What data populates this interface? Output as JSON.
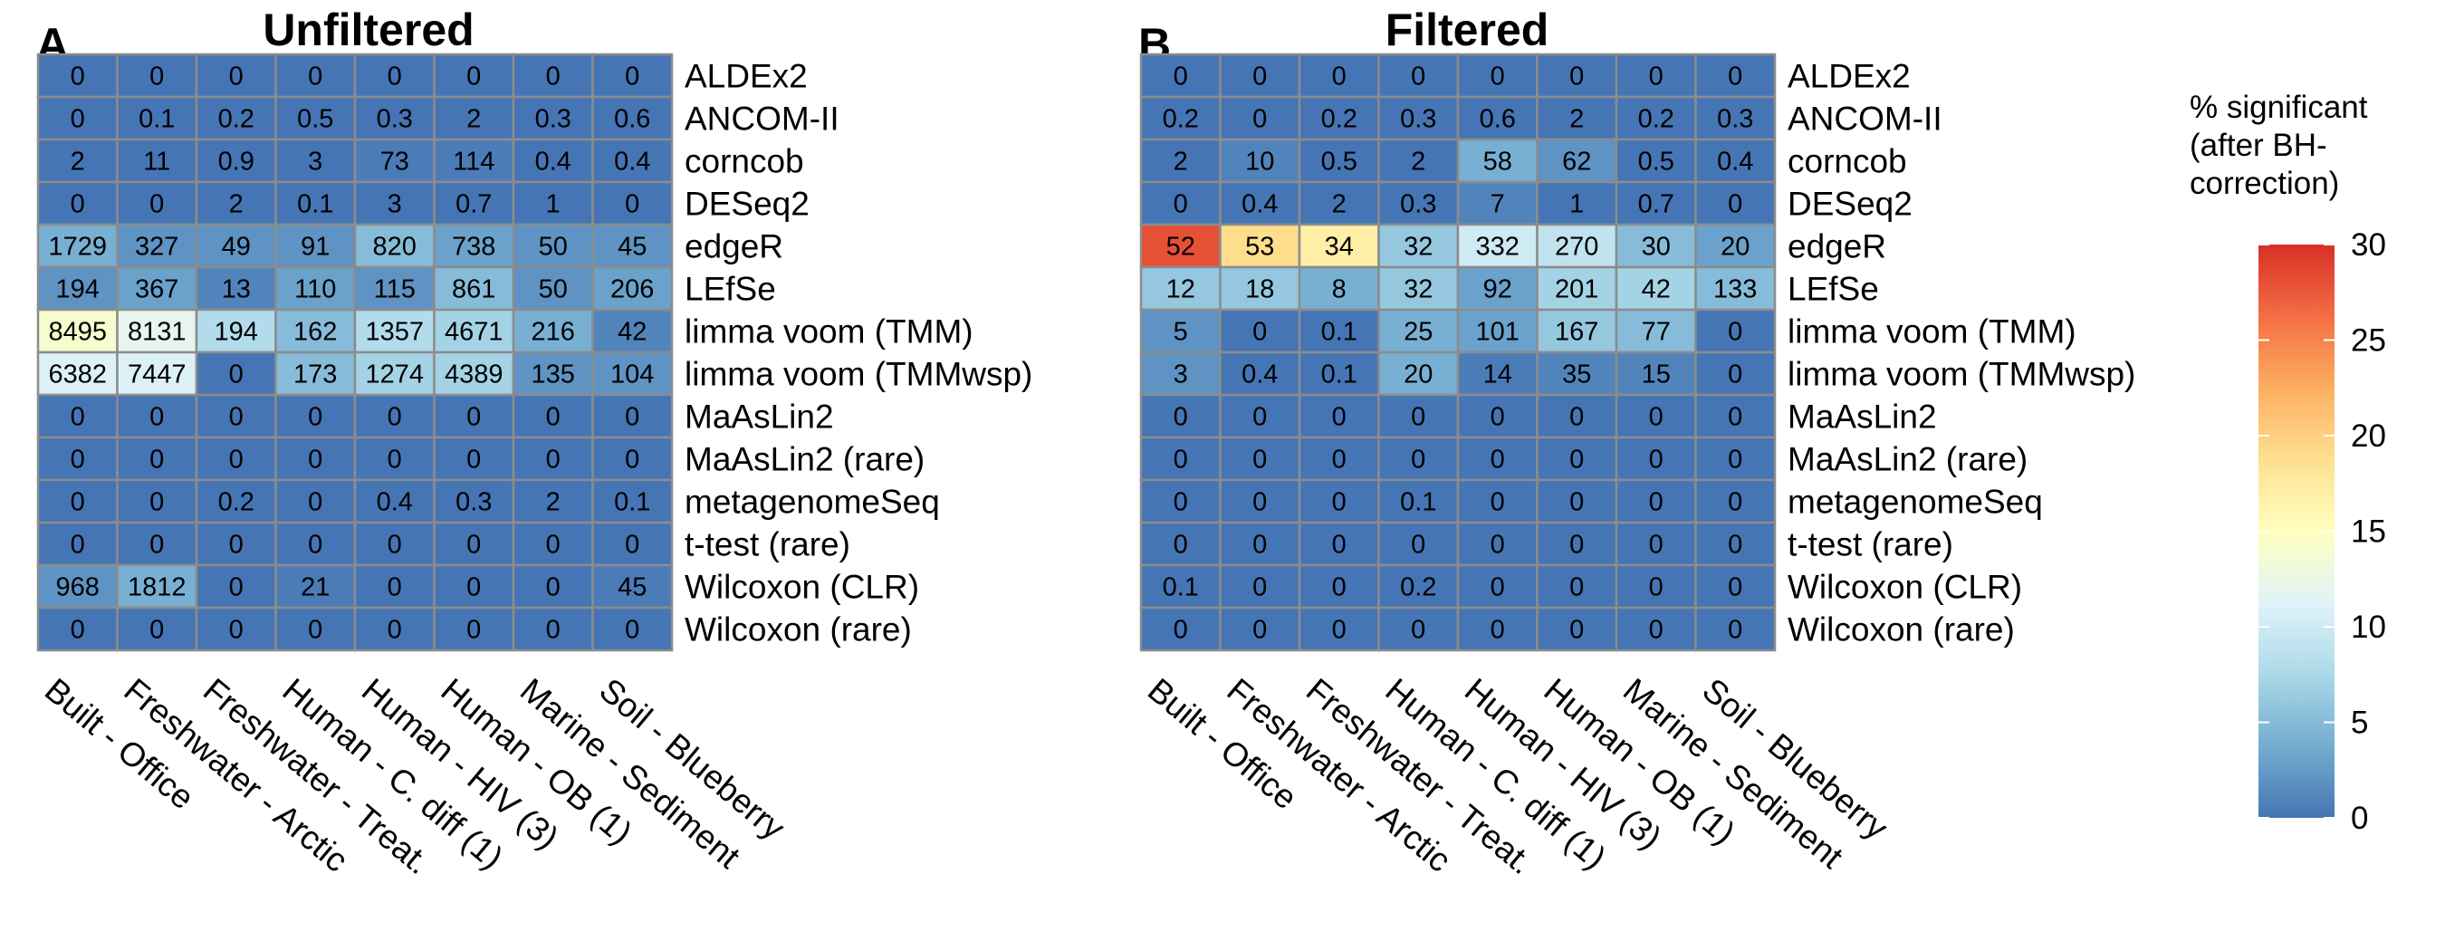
{
  "legend": {
    "title_lines": [
      "% significant",
      "(after BH-",
      "correction)"
    ],
    "min": 0,
    "max": 30,
    "ticks": [
      0,
      5,
      10,
      15,
      20,
      25,
      30
    ]
  },
  "colors": {
    "scale": [
      "#4575b4",
      "#74add1",
      "#abd9e9",
      "#e0f3f8",
      "#ffffbf",
      "#fee090",
      "#fdae61",
      "#f46d43",
      "#d73027"
    ],
    "grid": "#8c8c8c"
  },
  "chart_data": [
    {
      "type": "heatmap",
      "panel": "A",
      "title": "Unfiltered",
      "columns": [
        "Built - Office",
        "Freshwater - Arctic",
        "Freshwater - Treat.",
        "Human - C. diff (1)",
        "Human - HIV (3)",
        "Human - OB (1)",
        "Marine - Sediment",
        "Soil - Blueberry"
      ],
      "rows": [
        "ALDEx2",
        "ANCOM-II",
        "corncob",
        "DESeq2",
        "edgeR",
        "LEfSe",
        "limma voom (TMM)",
        "limma voom (TMMwsp)",
        "MaAsLin2",
        "MaAsLin2 (rare)",
        "metagenomeSeq",
        "t-test (rare)",
        "Wilcoxon (CLR)",
        "Wilcoxon (rare)"
      ],
      "labels": [
        [
          "0",
          "0",
          "0",
          "0",
          "0",
          "0",
          "0",
          "0"
        ],
        [
          "0",
          "0.1",
          "0.2",
          "0.5",
          "0.3",
          "2",
          "0.3",
          "0.6"
        ],
        [
          "2",
          "11",
          "0.9",
          "3",
          "73",
          "114",
          "0.4",
          "0.4"
        ],
        [
          "0",
          "0",
          "2",
          "0.1",
          "3",
          "0.7",
          "1",
          "0"
        ],
        [
          "1729",
          "327",
          "49",
          "91",
          "820",
          "738",
          "50",
          "45"
        ],
        [
          "194",
          "367",
          "13",
          "110",
          "115",
          "861",
          "50",
          "206"
        ],
        [
          "8495",
          "8131",
          "194",
          "162",
          "1357",
          "4671",
          "216",
          "42"
        ],
        [
          "6382",
          "7447",
          "0",
          "173",
          "1274",
          "4389",
          "135",
          "104"
        ],
        [
          "0",
          "0",
          "0",
          "0",
          "0",
          "0",
          "0",
          "0"
        ],
        [
          "0",
          "0",
          "0",
          "0",
          "0",
          "0",
          "0",
          "0"
        ],
        [
          "0",
          "0",
          "0.2",
          "0",
          "0.4",
          "0.3",
          "2",
          "0.1"
        ],
        [
          "0",
          "0",
          "0",
          "0",
          "0",
          "0",
          "0",
          "0"
        ],
        [
          "968",
          "1812",
          "0",
          "21",
          "0",
          "0",
          "0",
          "45"
        ],
        [
          "0",
          "0",
          "0",
          "0",
          "0",
          "0",
          "0",
          "0"
        ]
      ],
      "pct": [
        [
          0,
          0,
          0,
          0,
          0,
          0,
          0,
          0
        ],
        [
          0,
          0,
          0,
          0,
          0,
          0,
          0,
          0
        ],
        [
          0,
          0,
          0,
          0,
          0.5,
          0.5,
          0,
          0
        ],
        [
          0,
          0,
          0,
          0,
          0,
          0,
          0,
          0
        ],
        [
          4,
          2,
          2,
          2,
          5,
          3,
          2,
          2
        ],
        [
          2,
          3,
          1,
          3,
          2,
          5,
          2,
          3
        ],
        [
          14,
          12,
          8,
          5,
          8,
          7,
          4,
          1
        ],
        [
          11,
          11,
          0,
          5,
          7,
          7,
          2,
          2
        ],
        [
          0,
          0,
          0,
          0,
          0,
          0,
          0,
          0
        ],
        [
          0,
          0,
          0,
          0,
          0,
          0,
          0,
          0
        ],
        [
          0,
          0,
          0,
          0,
          0,
          0,
          0,
          0
        ],
        [
          0,
          0,
          0,
          0,
          0,
          0,
          0,
          0
        ],
        [
          2,
          4,
          0,
          0.5,
          0,
          0,
          0,
          0.5
        ],
        [
          0,
          0,
          0,
          0,
          0,
          0,
          0,
          0
        ]
      ]
    },
    {
      "type": "heatmap",
      "panel": "B",
      "title": "Filtered",
      "columns": [
        "Built - Office",
        "Freshwater - Arctic",
        "Freshwater - Treat.",
        "Human - C. diff (1)",
        "Human - HIV (3)",
        "Human - OB (1)",
        "Marine - Sediment",
        "Soil - Blueberry"
      ],
      "rows": [
        "ALDEx2",
        "ANCOM-II",
        "corncob",
        "DESeq2",
        "edgeR",
        "LEfSe",
        "limma voom (TMM)",
        "limma voom (TMMwsp)",
        "MaAsLin2",
        "MaAsLin2 (rare)",
        "metagenomeSeq",
        "t-test (rare)",
        "Wilcoxon (CLR)",
        "Wilcoxon (rare)"
      ],
      "labels": [
        [
          "0",
          "0",
          "0",
          "0",
          "0",
          "0",
          "0",
          "0"
        ],
        [
          "0.2",
          "0",
          "0.2",
          "0.3",
          "0.6",
          "2",
          "0.2",
          "0.3"
        ],
        [
          "2",
          "10",
          "0.5",
          "2",
          "58",
          "62",
          "0.5",
          "0.4"
        ],
        [
          "0",
          "0.4",
          "2",
          "0.3",
          "7",
          "1",
          "0.7",
          "0"
        ],
        [
          "52",
          "53",
          "34",
          "32",
          "332",
          "270",
          "30",
          "20"
        ],
        [
          "12",
          "18",
          "8",
          "32",
          "92",
          "201",
          "42",
          "133"
        ],
        [
          "5",
          "0",
          "0.1",
          "25",
          "101",
          "167",
          "77",
          "0"
        ],
        [
          "3",
          "0.4",
          "0.1",
          "20",
          "14",
          "35",
          "15",
          "0"
        ],
        [
          "0",
          "0",
          "0",
          "0",
          "0",
          "0",
          "0",
          "0"
        ],
        [
          "0",
          "0",
          "0",
          "0",
          "0",
          "0",
          "0",
          "0"
        ],
        [
          "0",
          "0",
          "0",
          "0.1",
          "0",
          "0",
          "0",
          "0"
        ],
        [
          "0",
          "0",
          "0",
          "0",
          "0",
          "0",
          "0",
          "0"
        ],
        [
          "0.1",
          "0",
          "0",
          "0.2",
          "0",
          "0",
          "0",
          "0"
        ],
        [
          "0",
          "0",
          "0",
          "0",
          "0",
          "0",
          "0",
          "0"
        ]
      ],
      "pct": [
        [
          0,
          0,
          0,
          0,
          0,
          0,
          0,
          0
        ],
        [
          0,
          0,
          0,
          0,
          0,
          0,
          0,
          0
        ],
        [
          0,
          1,
          0,
          0,
          4,
          2,
          0,
          0
        ],
        [
          0,
          0,
          0,
          0,
          1,
          0,
          0,
          0
        ],
        [
          28,
          19,
          17,
          6,
          10,
          9,
          5,
          3
        ],
        [
          6,
          6,
          4,
          6,
          3,
          7,
          7,
          5
        ],
        [
          2,
          0,
          0,
          4,
          3,
          6,
          5,
          0
        ],
        [
          2,
          0,
          0,
          4,
          0.5,
          1,
          1,
          0
        ],
        [
          0,
          0,
          0,
          0,
          0,
          0,
          0,
          0
        ],
        [
          0,
          0,
          0,
          0,
          0,
          0,
          0,
          0
        ],
        [
          0,
          0,
          0,
          0,
          0,
          0,
          0,
          0
        ],
        [
          0,
          0,
          0,
          0,
          0,
          0,
          0,
          0
        ],
        [
          0,
          0,
          0,
          0,
          0,
          0,
          0,
          0
        ],
        [
          0,
          0,
          0,
          0,
          0,
          0,
          0,
          0
        ]
      ]
    }
  ]
}
